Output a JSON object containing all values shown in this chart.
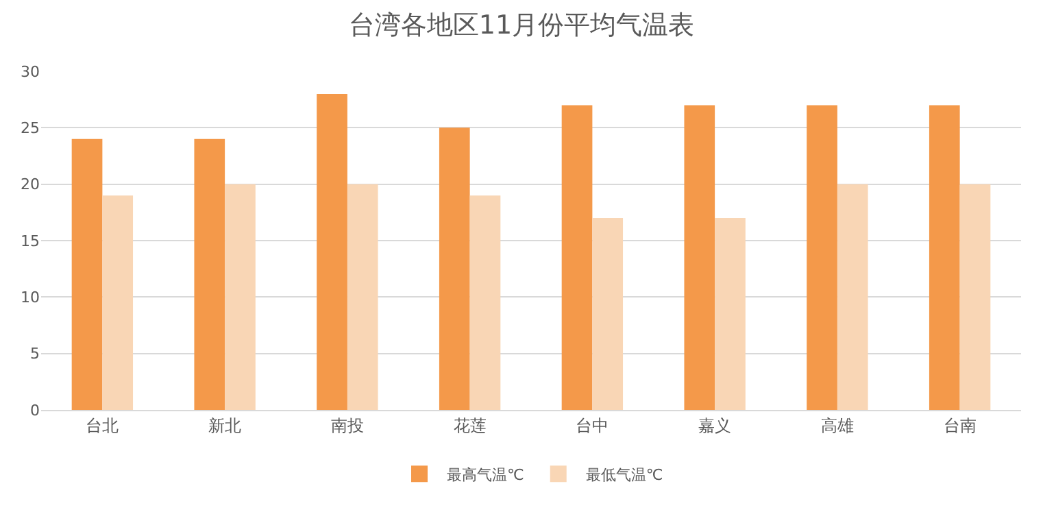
{
  "chart_data": {
    "type": "bar",
    "title": "台湾各地区11月份平均气温表",
    "categories": [
      "台北",
      "新北",
      "南投",
      "花莲",
      "台中",
      "嘉义",
      "高雄",
      "台南"
    ],
    "series": [
      {
        "name": "最高气温℃",
        "color": "#f4994a",
        "values": [
          24,
          24,
          28,
          25,
          27,
          27,
          27,
          27
        ]
      },
      {
        "name": "最低气温℃",
        "color": "#f9d6b5",
        "values": [
          19,
          20,
          20,
          19,
          17,
          17,
          20,
          20
        ]
      }
    ],
    "ylim": [
      0,
      30
    ],
    "yticks": [
      0,
      5,
      10,
      15,
      20,
      25,
      30
    ],
    "grid": "y",
    "legend": "bottom"
  }
}
